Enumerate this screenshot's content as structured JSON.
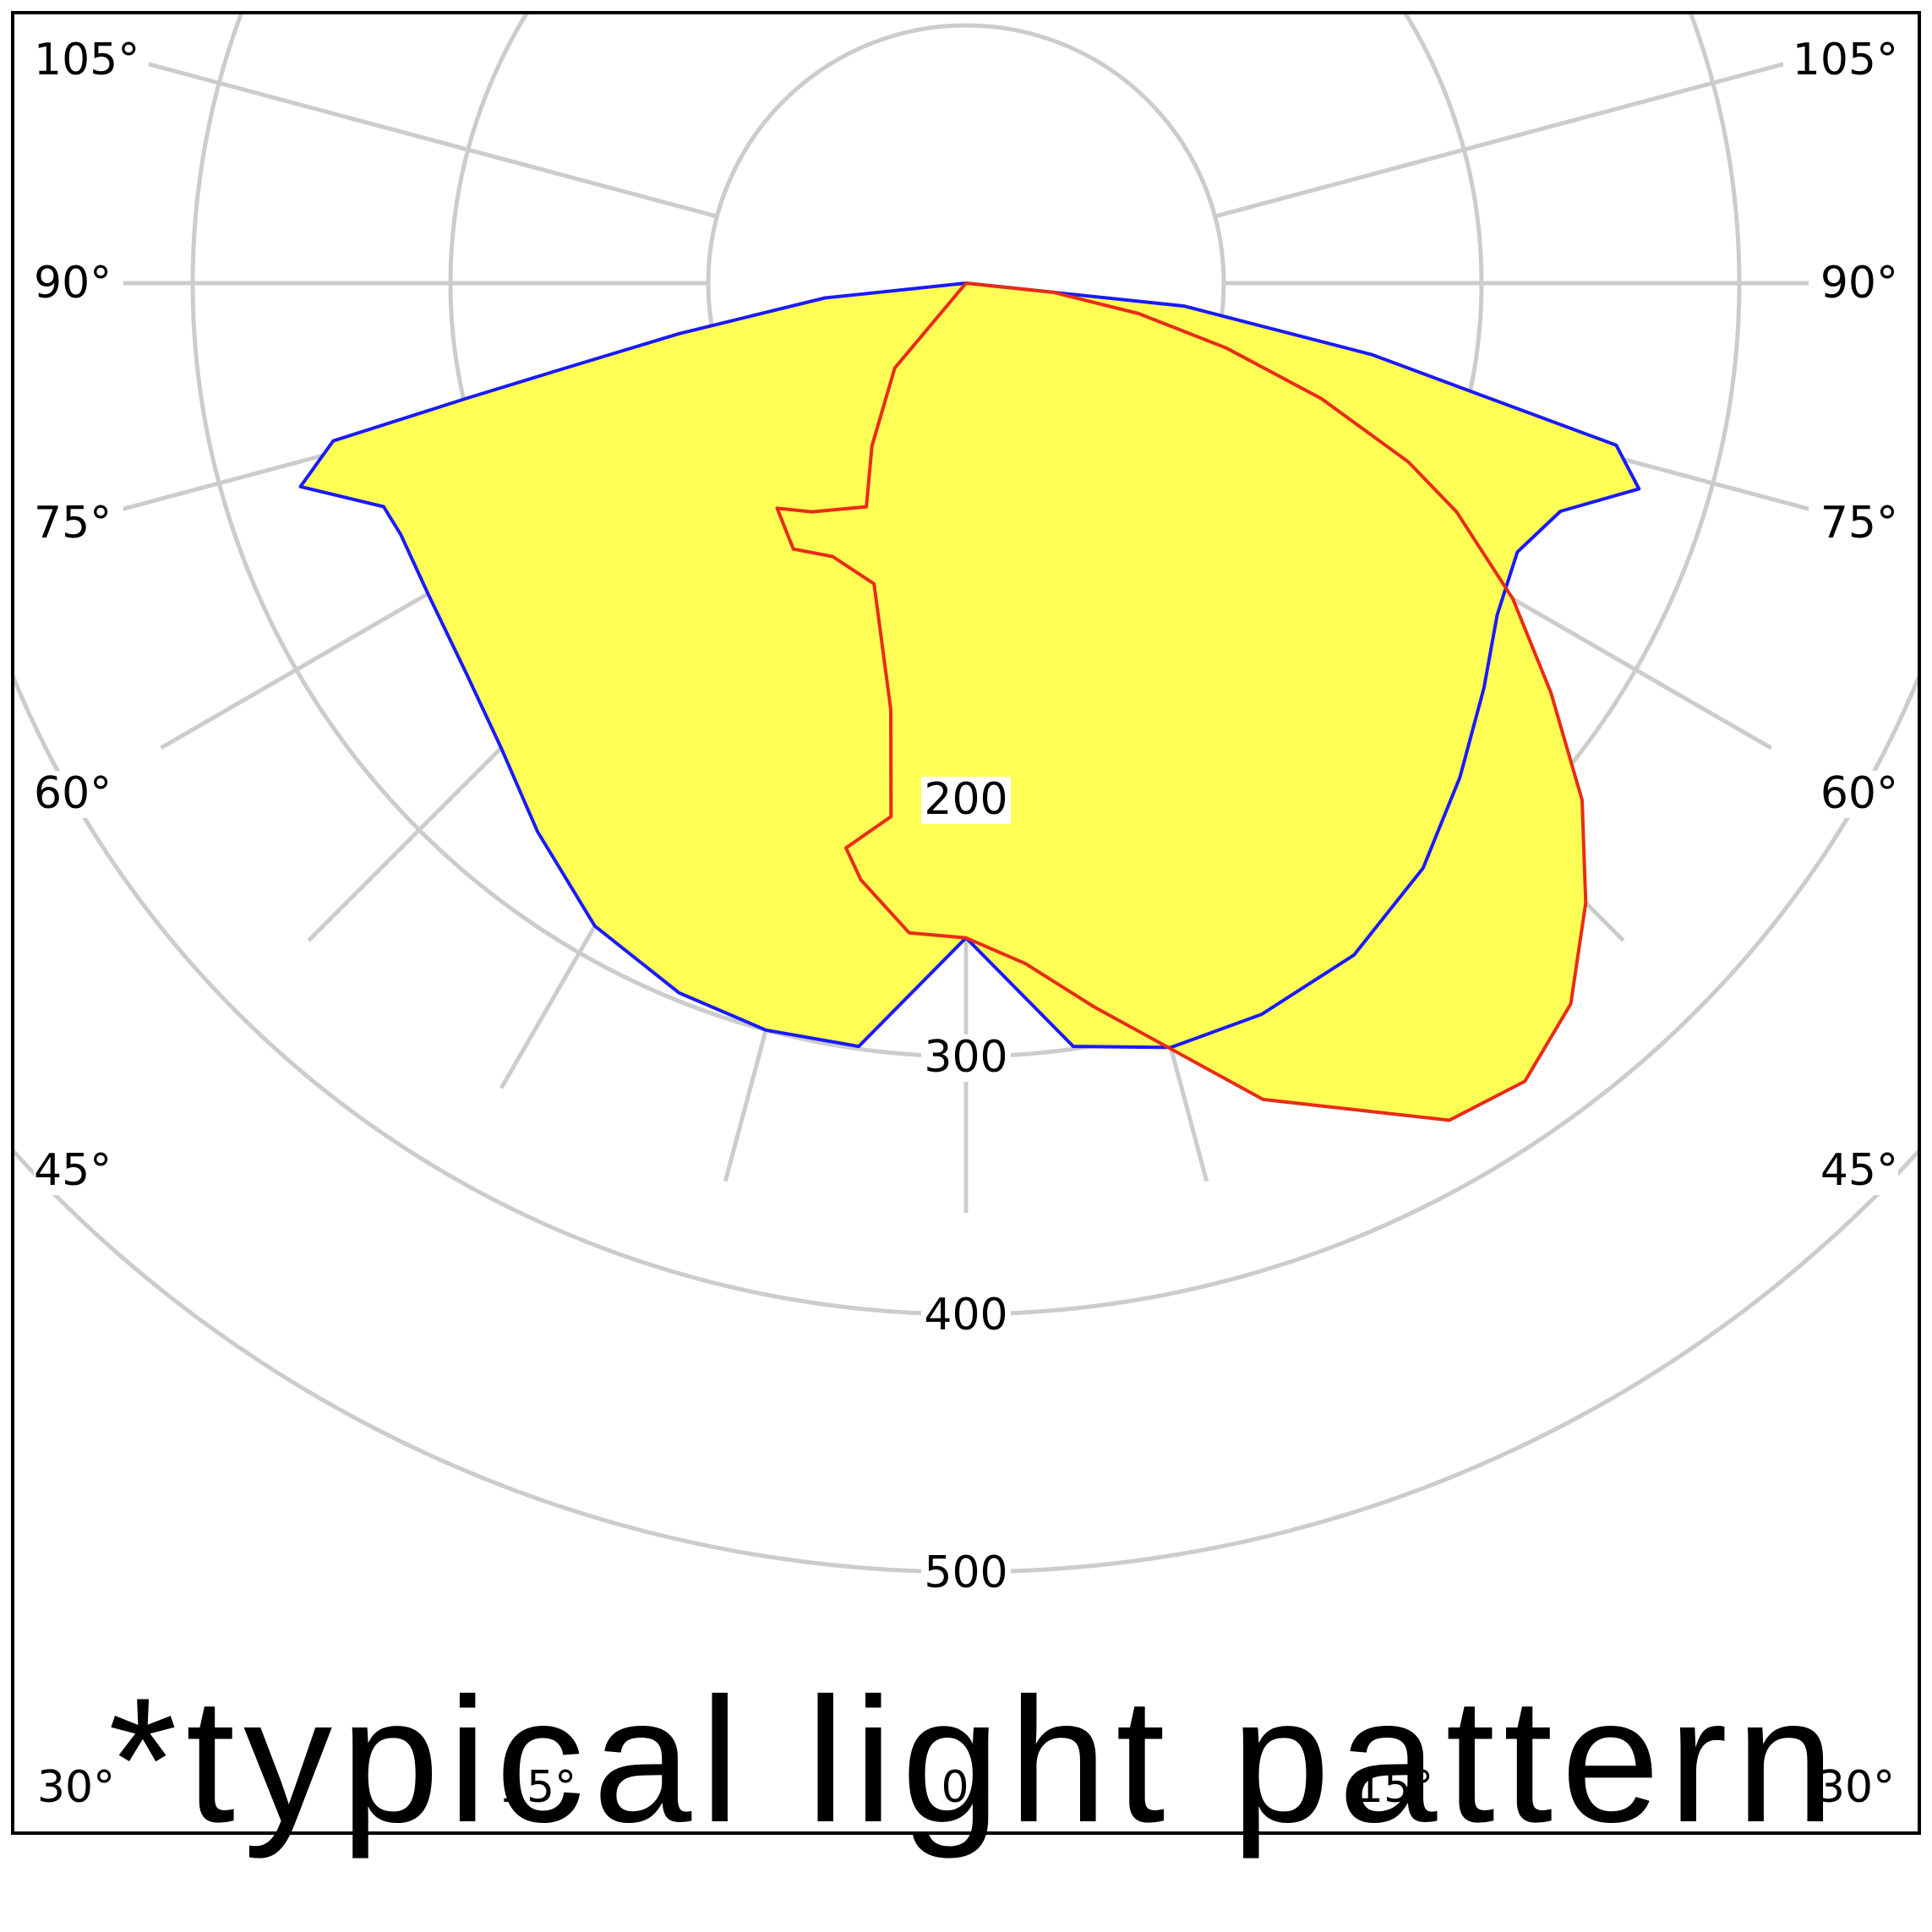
{
  "chart_data": {
    "type": "polar",
    "subtype": "luminous intensity distribution (photometric polar diagram)",
    "angle_unit": "degrees",
    "radial_ticks": [
      100,
      200,
      300,
      400,
      500
    ],
    "radial_labels": [
      "200",
      "300",
      "400",
      "500"
    ],
    "angle_labels_left": [
      "105°",
      "90°",
      "75°",
      "60°",
      "45°"
    ],
    "angle_labels_right": [
      "105°",
      "90°",
      "75°",
      "60°",
      "45°"
    ],
    "angle_labels_bottom": [
      "30°",
      "15°",
      "0°",
      "15°",
      "30°"
    ],
    "angle_gridlines_deg": [
      -105,
      -90,
      -75,
      -60,
      -45,
      -30,
      -15,
      0,
      15,
      30,
      45,
      60,
      75,
      90,
      105
    ],
    "grid": true,
    "fill_color": "#ffff55",
    "series": [
      {
        "color": "#1a1aff",
        "points": [
          [
            -90,
            0
          ],
          [
            -84,
            55
          ],
          [
            -80,
            113
          ],
          [
            -78,
            160
          ],
          [
            -77,
            199
          ],
          [
            -76,
            253
          ],
          [
            -73,
            270
          ],
          [
            -69,
            242
          ],
          [
            -66,
            240
          ],
          [
            -60,
            241
          ],
          [
            -52,
            246
          ],
          [
            -45,
            255
          ],
          [
            -38,
            270
          ],
          [
            -30,
            288
          ],
          [
            -22,
            297
          ],
          [
            -15,
            300
          ],
          [
            -8,
            299
          ],
          [
            0,
            254
          ],
          [
            8,
            299
          ],
          [
            15,
            307
          ],
          [
            22,
            306
          ],
          [
            30,
            301
          ],
          [
            38,
            288
          ],
          [
            45,
            271
          ],
          [
            52,
            255
          ],
          [
            58,
            243
          ],
          [
            64,
            238
          ],
          [
            69,
            247
          ],
          [
            73,
            273
          ],
          [
            76,
            260
          ],
          [
            78,
            198
          ],
          [
            80,
            160
          ],
          [
            84,
            85
          ],
          [
            90,
            0
          ]
        ]
      },
      {
        "color": "#e82c16",
        "points": [
          [
            -60,
            0
          ],
          [
            -40,
            43
          ],
          [
            -30,
            73
          ],
          [
            -24,
            95
          ],
          [
            -34,
            107
          ],
          [
            -40,
            114
          ],
          [
            -33,
            123
          ],
          [
            -26,
            118
          ],
          [
            -17,
            122
          ],
          [
            -10,
            168
          ],
          [
            -8,
            209
          ],
          [
            -12,
            224
          ],
          [
            -10,
            235
          ],
          [
            -5,
            253
          ],
          [
            0,
            254
          ],
          [
            5,
            265
          ],
          [
            10,
            285
          ],
          [
            20,
            337
          ],
          [
            30,
            375
          ],
          [
            35,
            378
          ],
          [
            40,
            365
          ],
          [
            45,
            340
          ],
          [
            50,
            312
          ],
          [
            55,
            277
          ],
          [
            60,
            245
          ],
          [
            65,
            210
          ],
          [
            68,
            185
          ],
          [
            72,
            145
          ],
          [
            76,
            104
          ],
          [
            80,
            68
          ],
          [
            84,
            34
          ],
          [
            90,
            0
          ]
        ]
      }
    ]
  },
  "annotation": "*typical light pattern"
}
